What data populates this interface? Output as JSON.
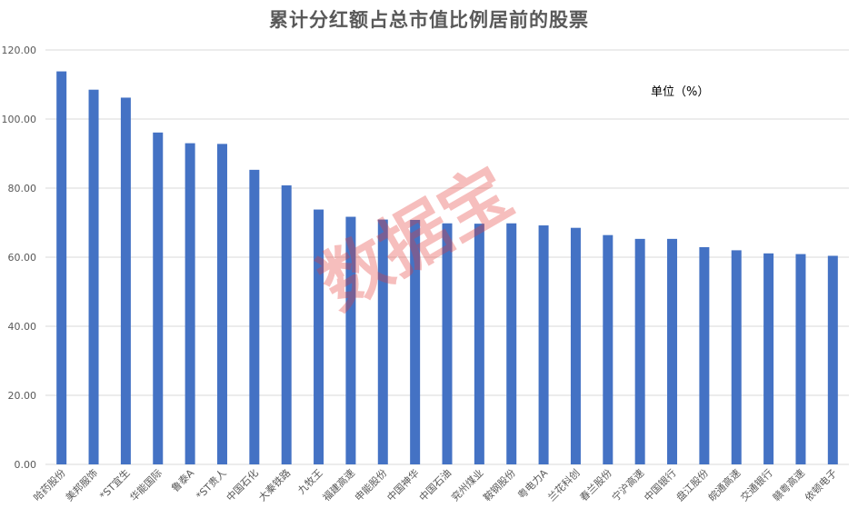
{
  "chart_data": {
    "type": "bar",
    "title": "累计分红额占总市值比例居前的股票",
    "unit_label": "单位（%）",
    "watermark": "数据宝",
    "categories": [
      "哈药股份",
      "美邦服饰",
      "*ST宜生",
      "华能国际",
      "鲁泰A",
      "*ST贵人",
      "中国石化",
      "大秦铁路",
      "九牧王",
      "福建高速",
      "申能股份",
      "中国神华",
      "中国石油",
      "兖州煤业",
      "鞍钢股份",
      "粤电力A",
      "兰花科创",
      "春兰股份",
      "宁沪高速",
      "中国银行",
      "盘江股份",
      "皖通高速",
      "交通银行",
      "赣粤高速",
      "依顿电子"
    ],
    "values": [
      113.8,
      108.5,
      106.2,
      96.1,
      93.0,
      92.8,
      85.3,
      80.8,
      73.8,
      71.7,
      70.9,
      70.8,
      69.8,
      69.7,
      69.8,
      69.2,
      68.5,
      66.4,
      65.3,
      65.3,
      62.9,
      62.0,
      61.1,
      60.9,
      60.4
    ],
    "yticks": [
      "0.00",
      "20.00",
      "40.00",
      "60.00",
      "80.00",
      "100.00",
      "120.00"
    ],
    "ylim": [
      0,
      120
    ],
    "colors": {
      "bar": "#4472c4",
      "grid": "#d9d9d9"
    },
    "grid": true
  }
}
